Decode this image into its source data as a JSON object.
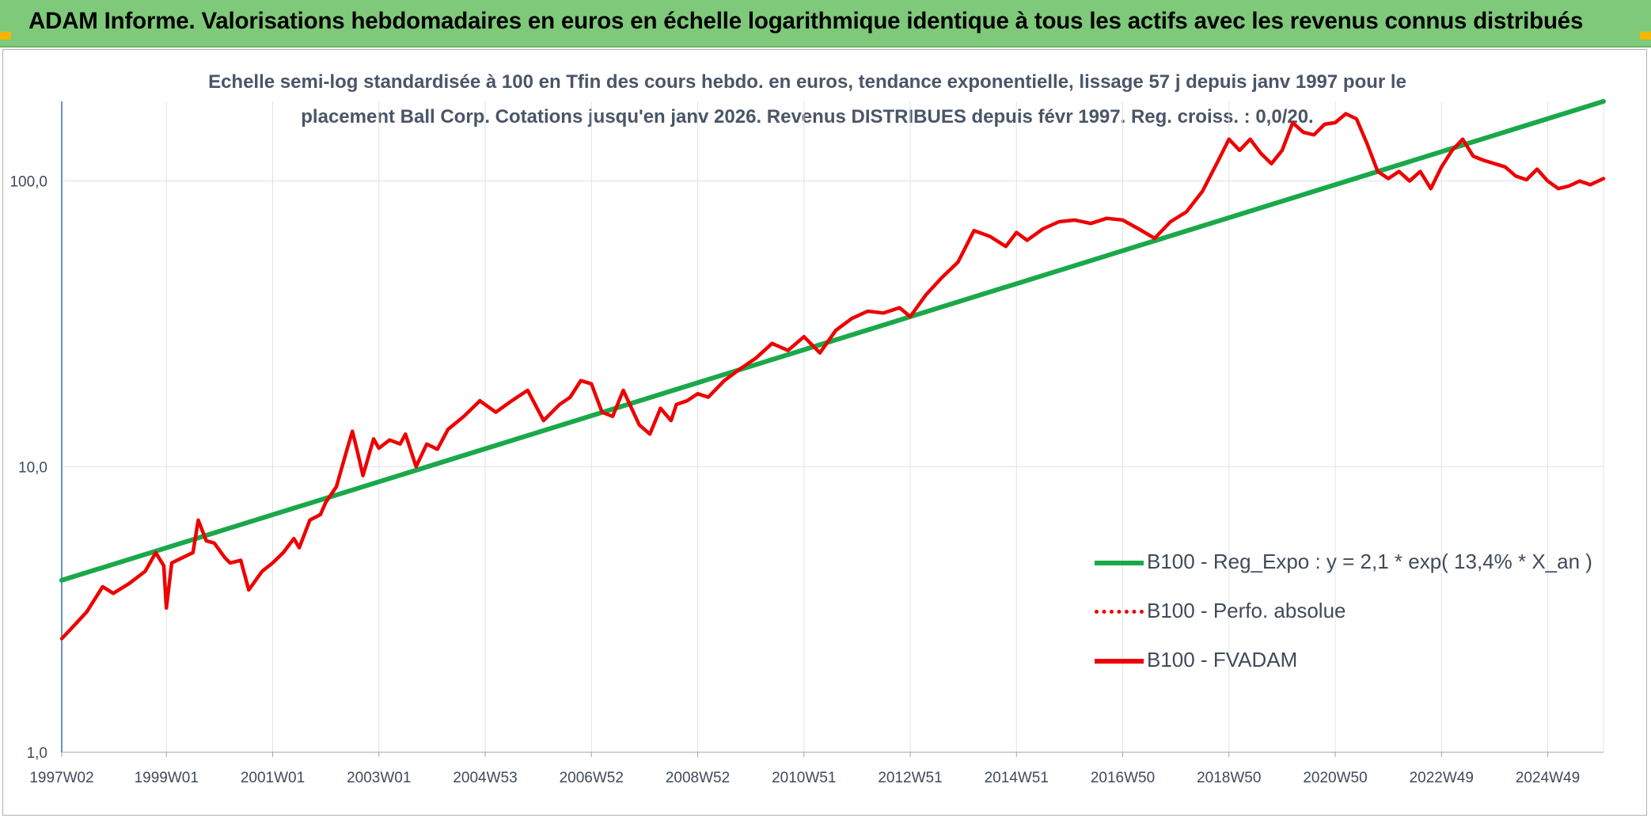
{
  "header": {
    "title": "ADAM Informe. Valorisations hebdomadaires en euros en échelle logarithmique identique à tous les actifs avec les revenus connus distribués"
  },
  "colors": {
    "banner": "#7ec97a",
    "trend": "#1aa84a",
    "fvadam": "#ee0000",
    "perfo": "#ee0000",
    "grid": "#dde3ea",
    "axis_text": "#404a5a"
  },
  "chart_data": {
    "type": "line",
    "title_line1": "Echelle semi-log standardisée à 100 en Tfin des cours hebdo. en euros, tendance exponentielle, lissage 57 j depuis janv 1997 pour le",
    "title_line2": "placement Ball Corp. Cotations jusqu'en janv 2026. Revenus DISTRIBUES depuis févr 1997. Reg. croiss. : 0,0/20.",
    "y_scale": "log",
    "ylim": [
      1,
      190
    ],
    "xlim": [
      1997.03,
      2026.05
    ],
    "y_ticks": [
      {
        "value": 1,
        "label": "1,0"
      },
      {
        "value": 10,
        "label": "10,0"
      },
      {
        "value": 100,
        "label": "100,0"
      }
    ],
    "x_ticks": [
      {
        "value": 1997.03,
        "label": "1997W02"
      },
      {
        "value": 1999.0,
        "label": "1999W01"
      },
      {
        "value": 2001.0,
        "label": "2001W01"
      },
      {
        "value": 2003.0,
        "label": "2003W01"
      },
      {
        "value": 2005.0,
        "label": "2004W53"
      },
      {
        "value": 2007.0,
        "label": "2006W52"
      },
      {
        "value": 2009.0,
        "label": "2008W52"
      },
      {
        "value": 2011.0,
        "label": "2010W51"
      },
      {
        "value": 2013.0,
        "label": "2012W51"
      },
      {
        "value": 2015.0,
        "label": "2014W51"
      },
      {
        "value": 2017.0,
        "label": "2016W50"
      },
      {
        "value": 2019.0,
        "label": "2018W50"
      },
      {
        "value": 2021.0,
        "label": "2020W50"
      },
      {
        "value": 2023.0,
        "label": "2022W49"
      },
      {
        "value": 2025.0,
        "label": "2024W49"
      }
    ],
    "grid": true,
    "legend_position": "bottom-right",
    "series": [
      {
        "name": "B100 - Reg_Expo : y = 2,1 * exp( 13,4% *  X_an )",
        "style": "solid",
        "color": "#1aa84a",
        "x": [
          1997.03,
          2026.05
        ],
        "y": [
          4.0,
          190.0
        ]
      },
      {
        "name": "B100 - Perfo. absolue",
        "style": "dotted",
        "color": "#ee0000",
        "x": [],
        "y": []
      },
      {
        "name": "B100 - FVADAM",
        "style": "solid",
        "color": "#ee0000",
        "x": [
          1997.03,
          1997.2,
          1997.5,
          1997.8,
          1998.0,
          1998.3,
          1998.6,
          1998.8,
          1998.95,
          1999.0,
          1999.1,
          1999.3,
          1999.5,
          1999.6,
          1999.75,
          1999.9,
          2000.1,
          2000.2,
          2000.4,
          2000.55,
          2000.8,
          2001.0,
          2001.2,
          2001.4,
          2001.5,
          2001.7,
          2001.9,
          2002.0,
          2002.2,
          2002.4,
          2002.5,
          2002.6,
          2002.7,
          2002.9,
          2003.0,
          2003.2,
          2003.4,
          2003.5,
          2003.7,
          2003.9,
          2004.1,
          2004.3,
          2004.6,
          2004.9,
          2005.2,
          2005.5,
          2005.8,
          2006.1,
          2006.4,
          2006.6,
          2006.8,
          2007.0,
          2007.2,
          2007.4,
          2007.6,
          2007.9,
          2008.1,
          2008.3,
          2008.5,
          2008.6,
          2008.8,
          2009.0,
          2009.2,
          2009.5,
          2009.8,
          2010.1,
          2010.4,
          2010.7,
          2011.0,
          2011.3,
          2011.6,
          2011.9,
          2012.2,
          2012.5,
          2012.8,
          2013.0,
          2013.3,
          2013.6,
          2013.9,
          2014.2,
          2014.5,
          2014.8,
          2015.0,
          2015.2,
          2015.5,
          2015.8,
          2016.1,
          2016.4,
          2016.7,
          2017.0,
          2017.3,
          2017.6,
          2017.9,
          2018.2,
          2018.5,
          2018.8,
          2019.0,
          2019.2,
          2019.4,
          2019.6,
          2019.8,
          2020.0,
          2020.2,
          2020.4,
          2020.6,
          2020.8,
          2021.0,
          2021.2,
          2021.4,
          2021.6,
          2021.8,
          2022.0,
          2022.2,
          2022.4,
          2022.6,
          2022.8,
          2023.0,
          2023.2,
          2023.4,
          2023.6,
          2023.8,
          2024.0,
          2024.2,
          2024.4,
          2024.6,
          2024.8,
          2025.0,
          2025.2,
          2025.4,
          2025.6,
          2025.8,
          2026.05
        ],
        "y": [
          2.5,
          2.7,
          3.1,
          3.8,
          3.6,
          3.9,
          4.3,
          5.0,
          4.5,
          3.2,
          4.6,
          4.8,
          5.0,
          6.5,
          5.5,
          5.4,
          4.8,
          4.6,
          4.7,
          3.7,
          4.3,
          4.6,
          5.0,
          5.6,
          5.2,
          6.5,
          6.8,
          7.5,
          8.5,
          11.5,
          13.3,
          11.2,
          9.3,
          12.5,
          11.6,
          12.4,
          12.0,
          13.0,
          10.0,
          12.0,
          11.5,
          13.5,
          15.0,
          17.0,
          15.5,
          17.0,
          18.5,
          14.5,
          16.5,
          17.5,
          20.0,
          19.5,
          15.5,
          15.0,
          18.5,
          14.0,
          13.0,
          16.0,
          14.5,
          16.5,
          17.0,
          18.0,
          17.5,
          20.0,
          22.0,
          24.0,
          27.0,
          25.5,
          28.5,
          25.0,
          30.0,
          33.0,
          35.0,
          34.5,
          36.0,
          33.5,
          40.0,
          46.0,
          52.0,
          67.0,
          64.0,
          59.0,
          66.0,
          62.0,
          68.0,
          72.0,
          73.0,
          71.0,
          74.0,
          73.0,
          68.0,
          63.0,
          72.0,
          78.0,
          92.0,
          118.0,
          140.0,
          128.0,
          140.0,
          125.0,
          115.0,
          128.0,
          160.0,
          148.0,
          145.0,
          158.0,
          160.0,
          172.0,
          165.0,
          135.0,
          108.0,
          102.0,
          108.0,
          100.0,
          108.0,
          94.0,
          112.0,
          128.0,
          140.0,
          122.0,
          118.0,
          115.0,
          112.0,
          104.0,
          101.0,
          110.0,
          100.0,
          94.0,
          96.0,
          100.0,
          97.0,
          102.0
        ]
      }
    ]
  }
}
